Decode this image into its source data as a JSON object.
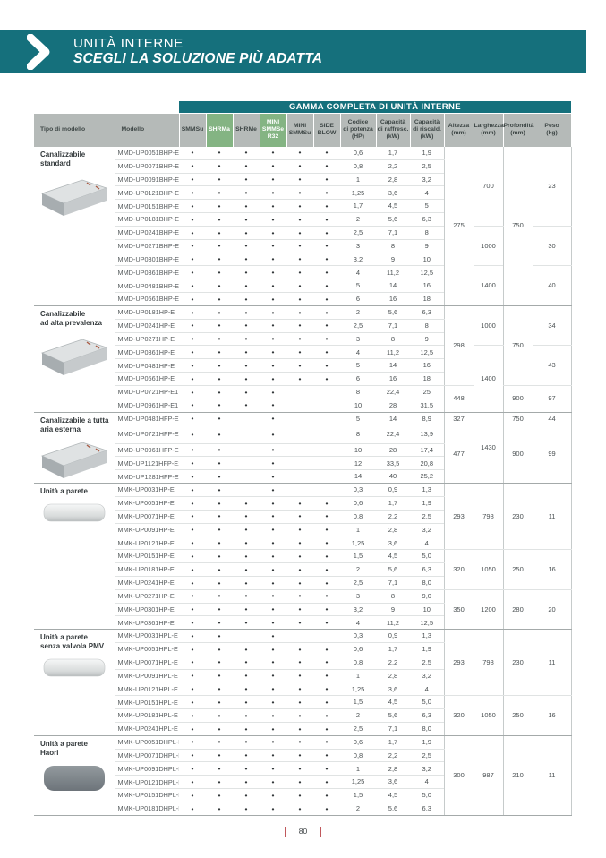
{
  "banner": {
    "title": "UNITÀ INTERNE",
    "subtitle": "SCEGLI LA SOLUZIONE PIÙ ADATTA"
  },
  "colors": {
    "teal": "#15707c",
    "green_column": "#84b483",
    "header_gray": "#b5bab8",
    "page_marker_red": "#c0585c"
  },
  "table": {
    "banner_title": "GAMMA COMPLETA DI UNITÀ INTERNE",
    "col_headers": {
      "tipo": "Tipo di modello",
      "modello": "Modello",
      "systems": [
        {
          "label": "SMMSu",
          "green": false
        },
        {
          "label": "SHRMa",
          "green": true
        },
        {
          "label": "SHRMe",
          "green": false
        },
        {
          "label": "MINI\nSMMSe\nR32",
          "green": true
        },
        {
          "label": "MINI\nSMMSu",
          "green": false
        },
        {
          "label": "SIDE\nBLOW",
          "green": false
        }
      ],
      "measures": [
        "Codice\ndi potenza\n(HP)",
        "Capacità\ndi raffresc.\n(kW)",
        "Capacità\ndi riscald.\n(kW)",
        "Altezza\n(mm)",
        "Larghezza\n(mm)",
        "Profondità\n(mm)",
        "Peso\n(kg)"
      ]
    },
    "groups": [
      {
        "label": "Canalizzabile\nstandard",
        "image": "duct",
        "rows": [
          [
            "MMD-UP0051BHP-E",
            [
              1,
              1,
              1,
              1,
              1,
              1
            ],
            "0,6",
            "1,7",
            "1,9"
          ],
          [
            "MMD-UP0071BHP-E",
            [
              1,
              1,
              1,
              1,
              1,
              1
            ],
            "0,8",
            "2,2",
            "2,5"
          ],
          [
            "MMD-UP0091BHP-E",
            [
              1,
              1,
              1,
              1,
              1,
              1
            ],
            "1",
            "2,8",
            "3,2"
          ],
          [
            "MMD-UP0121BHP-E",
            [
              1,
              1,
              1,
              1,
              1,
              1
            ],
            "1,25",
            "3,6",
            "4"
          ],
          [
            "MMD-UP0151BHP-E",
            [
              1,
              1,
              1,
              1,
              1,
              1
            ],
            "1,7",
            "4,5",
            "5"
          ],
          [
            "MMD-UP0181BHP-E",
            [
              1,
              1,
              1,
              1,
              1,
              1
            ],
            "2",
            "5,6",
            "6,3"
          ],
          [
            "MMD-UP0241BHP-E",
            [
              1,
              1,
              1,
              1,
              1,
              1
            ],
            "2,5",
            "7,1",
            "8"
          ],
          [
            "MMD-UP0271BHP-E",
            [
              1,
              1,
              1,
              1,
              1,
              1
            ],
            "3",
            "8",
            "9"
          ],
          [
            "MMD-UP0301BHP-E",
            [
              1,
              1,
              1,
              1,
              1,
              1
            ],
            "3,2",
            "9",
            "10"
          ],
          [
            "MMD-UP0361BHP-E",
            [
              1,
              1,
              1,
              1,
              1,
              1
            ],
            "4",
            "11,2",
            "12,5"
          ],
          [
            "MMD-UP0481BHP-E",
            [
              1,
              1,
              1,
              1,
              1,
              1
            ],
            "5",
            "14",
            "16"
          ],
          [
            "MMD-UP0561BHP-E",
            [
              1,
              1,
              1,
              1,
              1,
              1
            ],
            "6",
            "16",
            "18"
          ]
        ],
        "dims": {
          "altezza": [
            [
              "275",
              12
            ]
          ],
          "larghezza": [
            [
              "700",
              6
            ],
            [
              "1000",
              3
            ],
            [
              "1400",
              3
            ]
          ],
          "profondita": [
            [
              "750",
              12
            ]
          ],
          "peso": [
            [
              "23",
              6
            ],
            [
              "30",
              3
            ],
            [
              "40",
              3
            ]
          ]
        }
      },
      {
        "label": "Canalizzabile\nad alta prevalenza",
        "image": "duct",
        "rows": [
          [
            "MMD-UP0181HP-E",
            [
              1,
              1,
              1,
              1,
              1,
              1
            ],
            "2",
            "5,6",
            "6,3"
          ],
          [
            "MMD-UP0241HP-E",
            [
              1,
              1,
              1,
              1,
              1,
              1
            ],
            "2,5",
            "7,1",
            "8"
          ],
          [
            "MMD-UP0271HP-E",
            [
              1,
              1,
              1,
              1,
              1,
              1
            ],
            "3",
            "8",
            "9"
          ],
          [
            "MMD-UP0361HP-E",
            [
              1,
              1,
              1,
              1,
              1,
              1
            ],
            "4",
            "11,2",
            "12,5"
          ],
          [
            "MMD-UP0481HP-E",
            [
              1,
              1,
              1,
              1,
              1,
              1
            ],
            "5",
            "14",
            "16"
          ],
          [
            "MMD-UP0561HP-E",
            [
              1,
              1,
              1,
              1,
              1,
              1
            ],
            "6",
            "16",
            "18"
          ],
          [
            "MMD-UP0721HP-E1",
            [
              1,
              1,
              1,
              1,
              0,
              0
            ],
            "8",
            "22,4",
            "25"
          ],
          [
            "MMD-UP0961HP-E1",
            [
              1,
              1,
              1,
              1,
              0,
              0
            ],
            "10",
            "28",
            "31,5"
          ]
        ],
        "dims": {
          "altezza": [
            [
              "298",
              6
            ],
            [
              "448",
              2
            ]
          ],
          "larghezza": [
            [
              "1000",
              3
            ],
            [
              "1400",
              5
            ]
          ],
          "profondita": [
            [
              "750",
              6
            ],
            [
              "900",
              2
            ]
          ],
          "peso": [
            [
              "34",
              3
            ],
            [
              "43",
              3
            ],
            [
              "97",
              2
            ]
          ]
        }
      },
      {
        "label": "Canalizzabile a tutta\naria esterna",
        "image": "duct",
        "rows": [
          [
            "MMD-UP0481HFP-E",
            [
              1,
              1,
              0,
              1,
              0,
              0
            ],
            "5",
            "14",
            "8,9"
          ],
          [
            "MMD-UP0721HFP-E1",
            [
              1,
              1,
              0,
              1,
              0,
              0
            ],
            "8",
            "22,4",
            "13,9"
          ],
          [
            "MMD-UP0961HFP-E1",
            [
              1,
              1,
              0,
              1,
              0,
              0
            ],
            "10",
            "28",
            "17,4"
          ],
          [
            "MMD-UP1121HFP-E1",
            [
              1,
              1,
              0,
              1,
              0,
              0
            ],
            "12",
            "33,5",
            "20,8"
          ],
          [
            "MMD-UP1281HFP-E1",
            [
              1,
              1,
              0,
              1,
              0,
              0
            ],
            "14",
            "40",
            "25,2"
          ]
        ],
        "dims": {
          "altezza": [
            [
              "327",
              1
            ],
            [
              "477",
              4
            ]
          ],
          "larghezza": [
            [
              "1430",
              5
            ]
          ],
          "profondita": [
            [
              "750",
              1
            ],
            [
              "900",
              4
            ]
          ],
          "peso": [
            [
              "44",
              1
            ],
            [
              "99",
              4
            ]
          ]
        }
      },
      {
        "label": "Unità a parete",
        "image": "wall",
        "rows": [
          [
            "MMK-UP0031HP-E",
            [
              1,
              1,
              0,
              1,
              0,
              0
            ],
            "0,3",
            "0,9",
            "1,3"
          ],
          [
            "MMK-UP0051HP-E",
            [
              1,
              1,
              1,
              1,
              1,
              1
            ],
            "0,6",
            "1,7",
            "1,9"
          ],
          [
            "MMK-UP0071HP-E",
            [
              1,
              1,
              1,
              1,
              1,
              1
            ],
            "0,8",
            "2,2",
            "2,5"
          ],
          [
            "MMK-UP0091HP-E",
            [
              1,
              1,
              1,
              1,
              1,
              1
            ],
            "1",
            "2,8",
            "3,2"
          ],
          [
            "MMK-UP0121HP-E",
            [
              1,
              1,
              1,
              1,
              1,
              1
            ],
            "1,25",
            "3,6",
            "4"
          ],
          [
            "MMK-UP0151HP-E",
            [
              1,
              1,
              1,
              1,
              1,
              1
            ],
            "1,5",
            "4,5",
            "5,0"
          ],
          [
            "MMK-UP0181HP-E",
            [
              1,
              1,
              1,
              1,
              1,
              1
            ],
            "2",
            "5,6",
            "6,3"
          ],
          [
            "MMK-UP0241HP-E",
            [
              1,
              1,
              1,
              1,
              1,
              1
            ],
            "2,5",
            "7,1",
            "8,0"
          ],
          [
            "MMK-UP0271HP-E",
            [
              1,
              1,
              1,
              1,
              1,
              1
            ],
            "3",
            "8",
            "9,0"
          ],
          [
            "MMK-UP0301HP-E",
            [
              1,
              1,
              1,
              1,
              1,
              1
            ],
            "3,2",
            "9",
            "10"
          ],
          [
            "MMK-UP0361HP-E",
            [
              1,
              1,
              1,
              1,
              1,
              1
            ],
            "4",
            "11,2",
            "12,5"
          ]
        ],
        "dims": {
          "altezza": [
            [
              "293",
              5
            ],
            [
              "320",
              3
            ],
            [
              "350",
              3
            ]
          ],
          "larghezza": [
            [
              "798",
              5
            ],
            [
              "1050",
              3
            ],
            [
              "1200",
              3
            ]
          ],
          "profondita": [
            [
              "230",
              5
            ],
            [
              "250",
              3
            ],
            [
              "280",
              3
            ]
          ],
          "peso": [
            [
              "11",
              5
            ],
            [
              "16",
              3
            ],
            [
              "20",
              3
            ]
          ]
        }
      },
      {
        "label": "Unità a parete\nsenza valvola PMV",
        "image": "wall",
        "rows": [
          [
            "MMK-UP0031HPL-E",
            [
              1,
              1,
              0,
              1,
              0,
              0
            ],
            "0,3",
            "0,9",
            "1,3"
          ],
          [
            "MMK-UP0051HPL-E",
            [
              1,
              1,
              1,
              1,
              1,
              1
            ],
            "0,6",
            "1,7",
            "1,9"
          ],
          [
            "MMK-UP0071HPL-E",
            [
              1,
              1,
              1,
              1,
              1,
              1
            ],
            "0,8",
            "2,2",
            "2,5"
          ],
          [
            "MMK-UP0091HPL-E",
            [
              1,
              1,
              1,
              1,
              1,
              1
            ],
            "1",
            "2,8",
            "3,2"
          ],
          [
            "MMK-UP0121HPL-E",
            [
              1,
              1,
              1,
              1,
              1,
              1
            ],
            "1,25",
            "3,6",
            "4"
          ],
          [
            "MMK-UP0151HPL-E",
            [
              1,
              1,
              1,
              1,
              1,
              1
            ],
            "1,5",
            "4,5",
            "5,0"
          ],
          [
            "MMK-UP0181HPL-E",
            [
              1,
              1,
              1,
              1,
              1,
              1
            ],
            "2",
            "5,6",
            "6,3"
          ],
          [
            "MMK-UP0241HPL-E",
            [
              1,
              1,
              1,
              1,
              1,
              1
            ],
            "2,5",
            "7,1",
            "8,0"
          ]
        ],
        "dims": {
          "altezza": [
            [
              "293",
              5
            ],
            [
              "320",
              3
            ]
          ],
          "larghezza": [
            [
              "798",
              5
            ],
            [
              "1050",
              3
            ]
          ],
          "profondita": [
            [
              "230",
              5
            ],
            [
              "250",
              3
            ]
          ],
          "peso": [
            [
              "11",
              5
            ],
            [
              "16",
              3
            ]
          ]
        }
      },
      {
        "label": "Unità a parete\nHaori",
        "image": "haori",
        "rows": [
          [
            "MMK-UP0051DHPL-E",
            [
              1,
              1,
              1,
              1,
              1,
              1
            ],
            "0,6",
            "1,7",
            "1,9"
          ],
          [
            "MMK-UP0071DHPL-E",
            [
              1,
              1,
              1,
              1,
              1,
              1
            ],
            "0,8",
            "2,2",
            "2,5"
          ],
          [
            "MMK-UP0091DHPL-E",
            [
              1,
              1,
              1,
              1,
              1,
              1
            ],
            "1",
            "2,8",
            "3,2"
          ],
          [
            "MMK-UP0121DHPL-E",
            [
              1,
              1,
              1,
              1,
              1,
              1
            ],
            "1,25",
            "3,6",
            "4"
          ],
          [
            "MMK-UP0151DHPL-E",
            [
              1,
              1,
              1,
              1,
              1,
              1
            ],
            "1,5",
            "4,5",
            "5,0"
          ],
          [
            "MMK-UP0181DHPL-E",
            [
              1,
              1,
              1,
              1,
              1,
              1
            ],
            "2",
            "5,6",
            "6,3"
          ]
        ],
        "dims": {
          "altezza": [
            [
              "300",
              6
            ]
          ],
          "larghezza": [
            [
              "987",
              6
            ]
          ],
          "profondita": [
            [
              "210",
              6
            ]
          ],
          "peso": [
            [
              "11",
              6
            ]
          ]
        }
      }
    ]
  },
  "footer": {
    "page_number": "80"
  }
}
